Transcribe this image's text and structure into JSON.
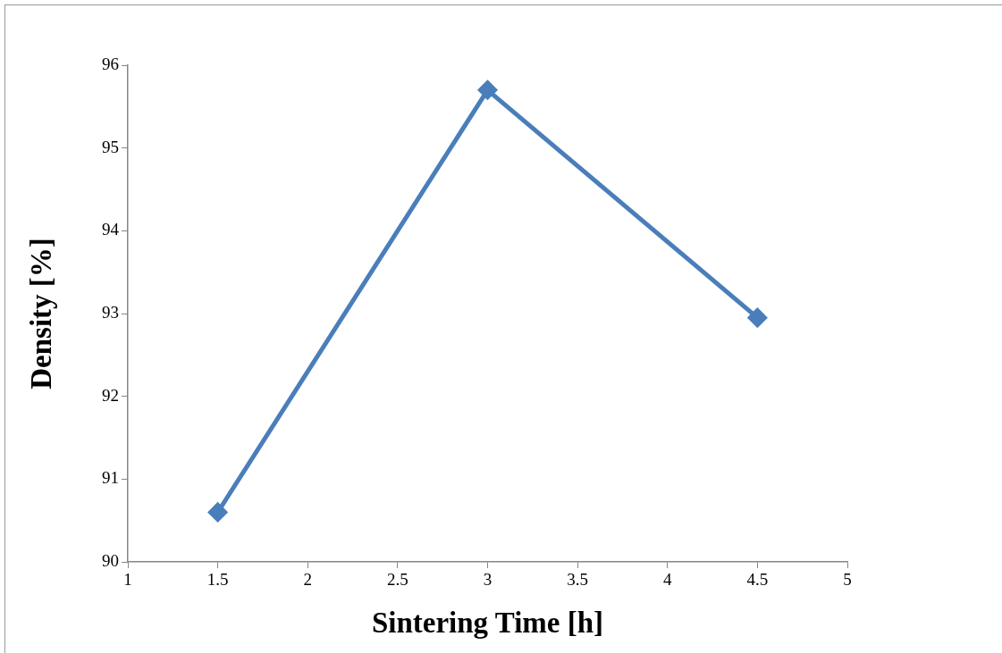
{
  "chart_data": {
    "type": "line",
    "xlabel": "Sintering Time [h]",
    "ylabel": "Density [%]",
    "x": [
      1.5,
      3,
      4.5
    ],
    "series": [
      {
        "color": "#4a7ebb",
        "values": [
          90.6,
          95.7,
          92.95
        ]
      }
    ],
    "xlim": [
      1,
      5
    ],
    "xticks": [
      1,
      1.5,
      2,
      2.5,
      3,
      3.5,
      4,
      4.5,
      5
    ],
    "ylim": [
      90,
      96
    ],
    "yticks": [
      90,
      91,
      92,
      93,
      94,
      95,
      96
    ],
    "grid": false,
    "legend": false,
    "marker": "diamond",
    "line_style": "solid"
  }
}
